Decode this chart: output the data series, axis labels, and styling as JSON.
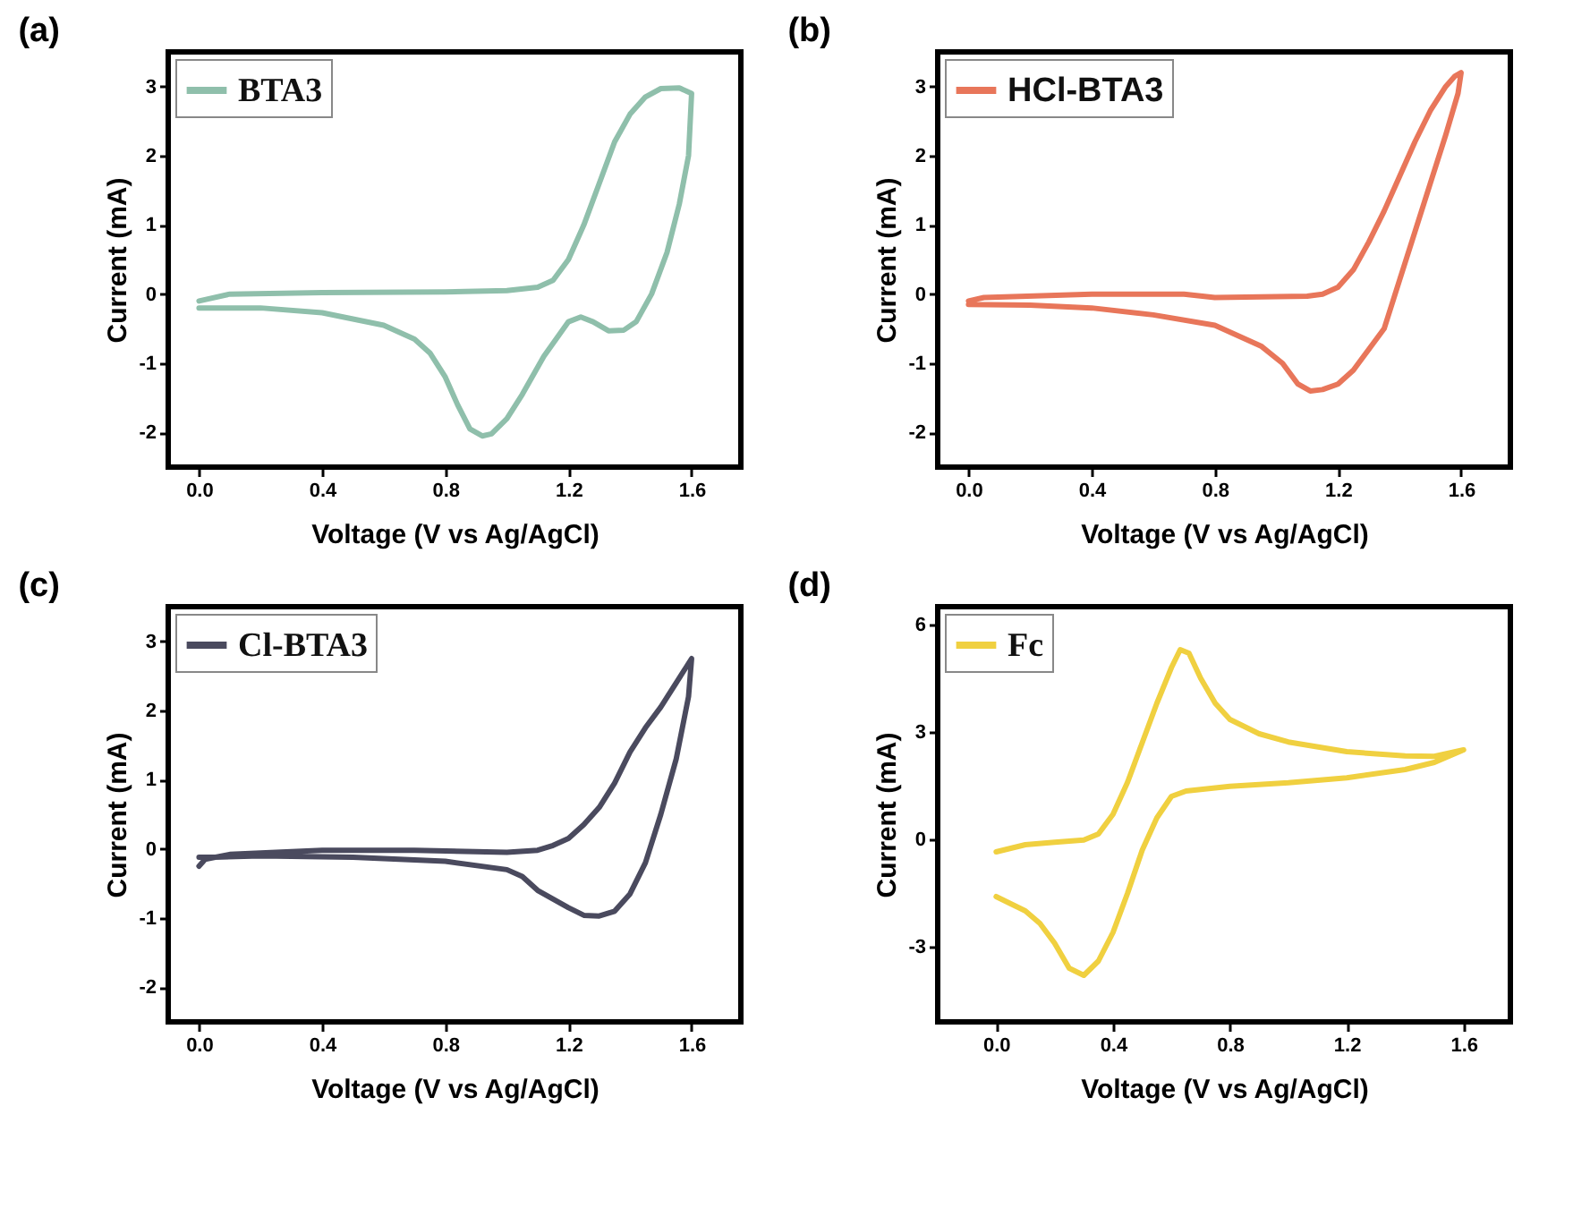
{
  "chart_data": [
    {
      "type": "line",
      "title": "(a)",
      "xlabel": "Voltage (V vs Ag/AgCl)",
      "ylabel": "Current (mA)",
      "xlim": [
        -0.1,
        1.76
      ],
      "ylim": [
        -2.5,
        3.5
      ],
      "xticks": [
        {
          "value": 0,
          "label": "0.0"
        },
        {
          "value": 0.4,
          "label": "0.4"
        },
        {
          "value": 0.8,
          "label": "0.8"
        },
        {
          "value": 1.2,
          "label": "1.2"
        },
        {
          "value": 1.6,
          "label": "1.6"
        }
      ],
      "yticks": [
        -2,
        -1,
        0,
        1,
        2,
        3
      ],
      "grid": false,
      "legend": "top left",
      "series": [
        {
          "name": "BTA3",
          "color": "#8fbfab",
          "x": [
            0,
            0.1,
            0.4,
            0.8,
            1.0,
            1.1,
            1.15,
            1.2,
            1.25,
            1.3,
            1.35,
            1.4,
            1.45,
            1.5,
            1.56,
            1.6,
            1.59,
            1.56,
            1.52,
            1.47,
            1.42,
            1.38,
            1.33,
            1.28,
            1.24,
            1.2,
            1.12,
            1.05,
            1.0,
            0.95,
            0.92,
            0.88,
            0.84,
            0.8,
            0.75,
            0.7,
            0.6,
            0.4,
            0.2,
            0
          ],
          "values": [
            -0.1,
            0,
            0.02,
            0.03,
            0.05,
            0.1,
            0.2,
            0.5,
            1.0,
            1.6,
            2.2,
            2.6,
            2.85,
            2.97,
            2.98,
            2.9,
            2.0,
            1.3,
            0.6,
            0.0,
            -0.4,
            -0.52,
            -0.53,
            -0.4,
            -0.33,
            -0.4,
            -0.9,
            -1.45,
            -1.8,
            -2.02,
            -2.05,
            -1.95,
            -1.6,
            -1.2,
            -0.85,
            -0.65,
            -0.45,
            -0.27,
            -0.2,
            -0.2
          ]
        }
      ]
    },
    {
      "type": "line",
      "title": "(b)",
      "xlabel": "Voltage (V vs Ag/AgCl)",
      "ylabel": "Current (mA)",
      "xlim": [
        -0.1,
        1.76
      ],
      "ylim": [
        -2.5,
        3.5
      ],
      "xticks": [
        {
          "value": 0,
          "label": "0.0"
        },
        {
          "value": 0.4,
          "label": "0.4"
        },
        {
          "value": 0.8,
          "label": "0.8"
        },
        {
          "value": 1.2,
          "label": "1.2"
        },
        {
          "value": 1.6,
          "label": "1.6"
        }
      ],
      "yticks": [
        -2,
        -1,
        0,
        1,
        2,
        3
      ],
      "grid": false,
      "legend": "top left",
      "series": [
        {
          "name": "HCl-BTA3",
          "color": "#e8765a",
          "x": [
            0,
            0.05,
            0.4,
            0.7,
            0.8,
            1.1,
            1.15,
            1.2,
            1.25,
            1.3,
            1.35,
            1.4,
            1.45,
            1.5,
            1.55,
            1.58,
            1.6,
            1.59,
            1.55,
            1.5,
            1.45,
            1.4,
            1.35,
            1.3,
            1.25,
            1.2,
            1.15,
            1.11,
            1.07,
            1.02,
            0.95,
            0.8,
            0.6,
            0.4,
            0.2,
            0
          ],
          "values": [
            -0.1,
            -0.05,
            0,
            0,
            -0.05,
            -0.03,
            0,
            0.1,
            0.35,
            0.75,
            1.2,
            1.7,
            2.2,
            2.65,
            3.0,
            3.15,
            3.2,
            2.9,
            2.3,
            1.6,
            0.9,
            0.2,
            -0.5,
            -0.8,
            -1.1,
            -1.3,
            -1.38,
            -1.4,
            -1.3,
            -1.0,
            -0.75,
            -0.45,
            -0.3,
            -0.2,
            -0.16,
            -0.15
          ]
        }
      ]
    },
    {
      "type": "line",
      "title": "(c)",
      "xlabel": "Voltage (V vs Ag/AgCl)",
      "ylabel": "Current (mA)",
      "xlim": [
        -0.1,
        1.76
      ],
      "ylim": [
        -2.5,
        3.5
      ],
      "xticks": [
        {
          "value": 0,
          "label": "0.0"
        },
        {
          "value": 0.4,
          "label": "0.4"
        },
        {
          "value": 0.8,
          "label": "0.8"
        },
        {
          "value": 1.2,
          "label": "1.2"
        },
        {
          "value": 1.6,
          "label": "1.6"
        }
      ],
      "yticks": [
        -2,
        -1,
        0,
        1,
        2,
        3
      ],
      "grid": false,
      "legend": "top left",
      "series": [
        {
          "name": "Cl-BTA3",
          "color": "#4a4a5e",
          "x": [
            0,
            0.02,
            0.1,
            0.4,
            0.7,
            1.0,
            1.1,
            1.15,
            1.2,
            1.25,
            1.3,
            1.35,
            1.4,
            1.45,
            1.5,
            1.55,
            1.6,
            1.59,
            1.55,
            1.5,
            1.45,
            1.4,
            1.35,
            1.3,
            1.25,
            1.2,
            1.1,
            1.05,
            1.0,
            0.8,
            0.5,
            0.2,
            0.05,
            0
          ],
          "values": [
            -0.25,
            -0.15,
            -0.08,
            -0.02,
            -0.02,
            -0.05,
            -0.02,
            0.05,
            0.15,
            0.35,
            0.6,
            0.95,
            1.4,
            1.75,
            2.05,
            2.4,
            2.75,
            2.2,
            1.3,
            0.5,
            -0.2,
            -0.65,
            -0.9,
            -0.97,
            -0.96,
            -0.85,
            -0.6,
            -0.4,
            -0.3,
            -0.18,
            -0.12,
            -0.1,
            -0.12,
            -0.12
          ]
        }
      ]
    },
    {
      "type": "line",
      "title": "(d)",
      "xlabel": "Voltage (V vs Ag/AgCl)",
      "ylabel": "Current (mA)",
      "xlim": [
        -0.2,
        1.76
      ],
      "ylim": [
        -5.1,
        6.5
      ],
      "xticks": [
        {
          "value": 0,
          "label": "0.0"
        },
        {
          "value": 0.4,
          "label": "0.4"
        },
        {
          "value": 0.8,
          "label": "0.8"
        },
        {
          "value": 1.2,
          "label": "1.2"
        },
        {
          "value": 1.6,
          "label": "1.6"
        }
      ],
      "yticks": [
        -3,
        0,
        3,
        6
      ],
      "grid": false,
      "legend": "top left",
      "series": [
        {
          "name": "Fc",
          "color": "#f0d040",
          "x": [
            0,
            0.1,
            0.2,
            0.3,
            0.35,
            0.4,
            0.45,
            0.5,
            0.55,
            0.6,
            0.63,
            0.66,
            0.7,
            0.75,
            0.8,
            0.9,
            1.0,
            1.2,
            1.4,
            1.5,
            1.6,
            1.5,
            1.4,
            1.2,
            1.0,
            0.8,
            0.65,
            0.6,
            0.55,
            0.5,
            0.45,
            0.4,
            0.35,
            0.3,
            0.25,
            0.2,
            0.15,
            0.1,
            0.05,
            0
          ],
          "values": [
            -0.35,
            -0.15,
            -0.08,
            -0.02,
            0.15,
            0.7,
            1.6,
            2.7,
            3.8,
            4.8,
            5.3,
            5.2,
            4.5,
            3.8,
            3.35,
            2.95,
            2.72,
            2.45,
            2.33,
            2.32,
            2.5,
            2.15,
            1.95,
            1.72,
            1.58,
            1.48,
            1.35,
            1.2,
            0.6,
            -0.3,
            -1.5,
            -2.6,
            -3.4,
            -3.8,
            -3.6,
            -2.9,
            -2.35,
            -2.0,
            -1.8,
            -1.6
          ]
        }
      ]
    }
  ]
}
